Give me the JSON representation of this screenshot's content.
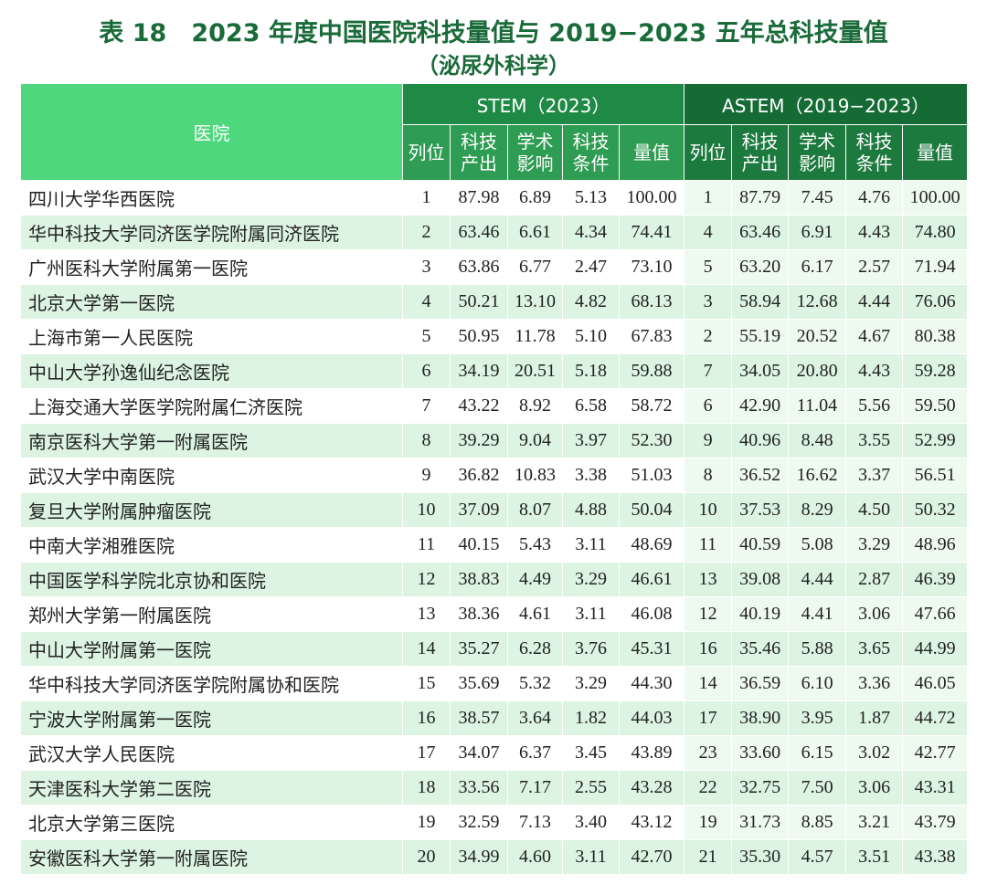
{
  "header": {
    "title": "表 18　2023 年度中国医院科技量值与 2019−2023 五年总科技量值",
    "subtitle": "（泌尿外科学）"
  },
  "table": {
    "hospital_header": "医院",
    "groups": [
      "STEM（2023）",
      "ASTEM（2019−2023）"
    ],
    "subheaders": [
      [
        "列位",
        "科技产出",
        "学术影响",
        "科技条件",
        "量值"
      ],
      [
        "列位",
        "科技产出",
        "学术影响",
        "科技条件",
        "量值"
      ]
    ],
    "rows": [
      [
        "四川大学华西医院",
        "1",
        "87.98",
        "6.89",
        "5.13",
        "100.00",
        "1",
        "87.79",
        "7.45",
        "4.76",
        "100.00"
      ],
      [
        "华中科技大学同济医学院附属同济医院",
        "2",
        "63.46",
        "6.61",
        "4.34",
        "74.41",
        "4",
        "63.46",
        "6.91",
        "4.43",
        "74.80"
      ],
      [
        "广州医科大学附属第一医院",
        "3",
        "63.86",
        "6.77",
        "2.47",
        "73.10",
        "5",
        "63.20",
        "6.17",
        "2.57",
        "71.94"
      ],
      [
        "北京大学第一医院",
        "4",
        "50.21",
        "13.10",
        "4.82",
        "68.13",
        "3",
        "58.94",
        "12.68",
        "4.44",
        "76.06"
      ],
      [
        "上海市第一人民医院",
        "5",
        "50.95",
        "11.78",
        "5.10",
        "67.83",
        "2",
        "55.19",
        "20.52",
        "4.67",
        "80.38"
      ],
      [
        "中山大学孙逸仙纪念医院",
        "6",
        "34.19",
        "20.51",
        "5.18",
        "59.88",
        "7",
        "34.05",
        "20.80",
        "4.43",
        "59.28"
      ],
      [
        "上海交通大学医学院附属仁济医院",
        "7",
        "43.22",
        "8.92",
        "6.58",
        "58.72",
        "6",
        "42.90",
        "11.04",
        "5.56",
        "59.50"
      ],
      [
        "南京医科大学第一附属医院",
        "8",
        "39.29",
        "9.04",
        "3.97",
        "52.30",
        "9",
        "40.96",
        "8.48",
        "3.55",
        "52.99"
      ],
      [
        "武汉大学中南医院",
        "9",
        "36.82",
        "10.83",
        "3.38",
        "51.03",
        "8",
        "36.52",
        "16.62",
        "3.37",
        "56.51"
      ],
      [
        "复旦大学附属肿瘤医院",
        "10",
        "37.09",
        "8.07",
        "4.88",
        "50.04",
        "10",
        "37.53",
        "8.29",
        "4.50",
        "50.32"
      ],
      [
        "中南大学湘雅医院",
        "11",
        "40.15",
        "5.43",
        "3.11",
        "48.69",
        "11",
        "40.59",
        "5.08",
        "3.29",
        "48.96"
      ],
      [
        "中国医学科学院北京协和医院",
        "12",
        "38.83",
        "4.49",
        "3.29",
        "46.61",
        "13",
        "39.08",
        "4.44",
        "2.87",
        "46.39"
      ],
      [
        "郑州大学第一附属医院",
        "13",
        "38.36",
        "4.61",
        "3.11",
        "46.08",
        "12",
        "40.19",
        "4.41",
        "3.06",
        "47.66"
      ],
      [
        "中山大学附属第一医院",
        "14",
        "35.27",
        "6.28",
        "3.76",
        "45.31",
        "16",
        "35.46",
        "5.88",
        "3.65",
        "44.99"
      ],
      [
        "华中科技大学同济医学院附属协和医院",
        "15",
        "35.69",
        "5.32",
        "3.29",
        "44.30",
        "14",
        "36.59",
        "6.10",
        "3.36",
        "46.05"
      ],
      [
        "宁波大学附属第一医院",
        "16",
        "38.57",
        "3.64",
        "1.82",
        "44.03",
        "17",
        "38.90",
        "3.95",
        "1.87",
        "44.72"
      ],
      [
        "武汉大学人民医院",
        "17",
        "34.07",
        "6.37",
        "3.45",
        "43.89",
        "23",
        "33.60",
        "6.15",
        "3.02",
        "42.77"
      ],
      [
        "天津医科大学第二医院",
        "18",
        "33.56",
        "7.17",
        "2.55",
        "43.28",
        "22",
        "32.75",
        "7.50",
        "3.06",
        "43.31"
      ],
      [
        "北京大学第三医院",
        "19",
        "32.59",
        "7.13",
        "3.40",
        "43.12",
        "19",
        "31.73",
        "8.85",
        "3.21",
        "43.79"
      ],
      [
        "安徽医科大学第一附属医院",
        "20",
        "34.99",
        "4.60",
        "3.11",
        "42.70",
        "21",
        "35.30",
        "4.57",
        "3.51",
        "43.38"
      ]
    ]
  }
}
